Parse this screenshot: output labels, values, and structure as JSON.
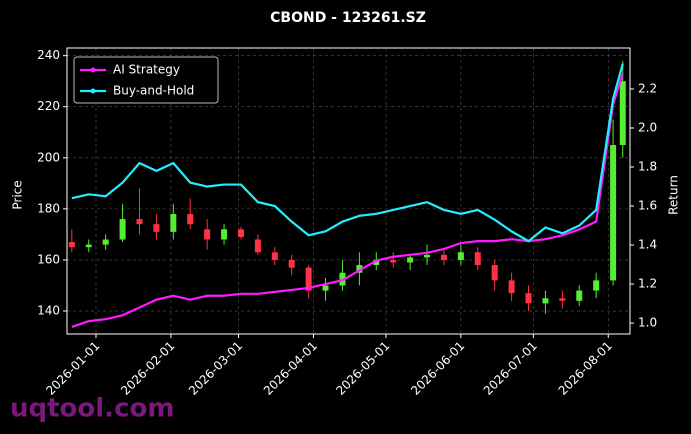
{
  "chart_data": {
    "type": "candlestick",
    "title": "CBOND - 123261.SZ",
    "ylabel": "Price",
    "y2label": "Return",
    "watermark": "uqtool.com",
    "x": [
      "2025-12-22",
      "2025-12-29",
      "2026-01-05",
      "2026-01-12",
      "2026-01-19",
      "2026-01-26",
      "2026-02-02",
      "2026-02-09",
      "2026-02-16",
      "2026-02-23",
      "2026-03-02",
      "2026-03-09",
      "2026-03-16",
      "2026-03-23",
      "2026-03-30",
      "2026-04-06",
      "2026-04-13",
      "2026-04-20",
      "2026-04-27",
      "2026-05-04",
      "2026-05-11",
      "2026-05-18",
      "2026-05-25",
      "2026-06-01",
      "2026-06-08",
      "2026-06-15",
      "2026-06-22",
      "2026-06-29",
      "2026-07-06",
      "2026-07-13",
      "2026-07-20",
      "2026-07-27",
      "2026-08-03",
      "2026-08-07"
    ],
    "open": [
      167,
      165,
      166,
      168,
      176,
      174,
      171,
      178,
      172,
      168,
      172,
      168,
      163,
      160,
      157,
      148,
      150,
      155,
      158,
      160,
      159,
      161,
      162,
      160,
      163,
      158,
      152,
      147,
      143,
      145,
      144,
      148,
      152,
      205
    ],
    "high": [
      172,
      168,
      170,
      182,
      188,
      178,
      182,
      184,
      176,
      174,
      173,
      170,
      165,
      162,
      158,
      153,
      160,
      163,
      163,
      163,
      162,
      166,
      164,
      166,
      165,
      160,
      155,
      150,
      148,
      148,
      150,
      155,
      215,
      238
    ],
    "low": [
      163,
      163,
      164,
      167,
      170,
      168,
      168,
      172,
      164,
      166,
      168,
      162,
      158,
      154,
      145,
      144,
      148,
      150,
      156,
      157,
      156,
      158,
      158,
      158,
      156,
      148,
      144,
      140,
      139,
      141,
      142,
      145,
      150,
      200
    ],
    "close": [
      165,
      166,
      168,
      176,
      174,
      171,
      178,
      174,
      168,
      172,
      169,
      163,
      160,
      157,
      148,
      150,
      155,
      158,
      160,
      159,
      161,
      162,
      160,
      163,
      158,
      152,
      147,
      143,
      145,
      144,
      148,
      152,
      205,
      230
    ],
    "up_color": "#55ee33",
    "down_color": "#ff3344",
    "series": [
      {
        "name": "AI Strategy",
        "color": "#ff1aff",
        "axis": "y2",
        "values": [
          0.98,
          1.01,
          1.02,
          1.04,
          1.08,
          1.12,
          1.14,
          1.12,
          1.14,
          1.14,
          1.15,
          1.15,
          1.16,
          1.17,
          1.18,
          1.2,
          1.22,
          1.27,
          1.32,
          1.34,
          1.35,
          1.36,
          1.38,
          1.41,
          1.42,
          1.42,
          1.43,
          1.42,
          1.43,
          1.45,
          1.48,
          1.52,
          2.12,
          2.28
        ]
      },
      {
        "name": "Buy-and-Hold",
        "color": "#22eeff",
        "axis": "y2",
        "values": [
          1.64,
          1.66,
          1.65,
          1.72,
          1.82,
          1.78,
          1.82,
          1.72,
          1.7,
          1.71,
          1.71,
          1.62,
          1.6,
          1.52,
          1.45,
          1.47,
          1.52,
          1.55,
          1.56,
          1.58,
          1.6,
          1.62,
          1.58,
          1.56,
          1.58,
          1.53,
          1.47,
          1.42,
          1.49,
          1.46,
          1.5,
          1.58,
          2.15,
          2.33
        ]
      }
    ],
    "xlim": [
      "2025-12-20",
      "2026-08-10"
    ],
    "xticks": [
      "2026-01-01",
      "2026-02-01",
      "2026-03-01",
      "2026-04-01",
      "2026-05-01",
      "2026-06-01",
      "2026-07-01",
      "2026-08-01"
    ],
    "ylim": [
      131,
      243
    ],
    "yticks": [
      140,
      160,
      180,
      200,
      220,
      240
    ],
    "y2lim": [
      0.944,
      2.41
    ],
    "y2ticks": [
      {
        "value": 1,
        "label": "1.0"
      },
      1.2,
      1.4,
      1.6,
      1.8,
      {
        "value": 2,
        "label": "2.0"
      },
      2.2
    ],
    "grid": true,
    "legend": "upper left"
  }
}
